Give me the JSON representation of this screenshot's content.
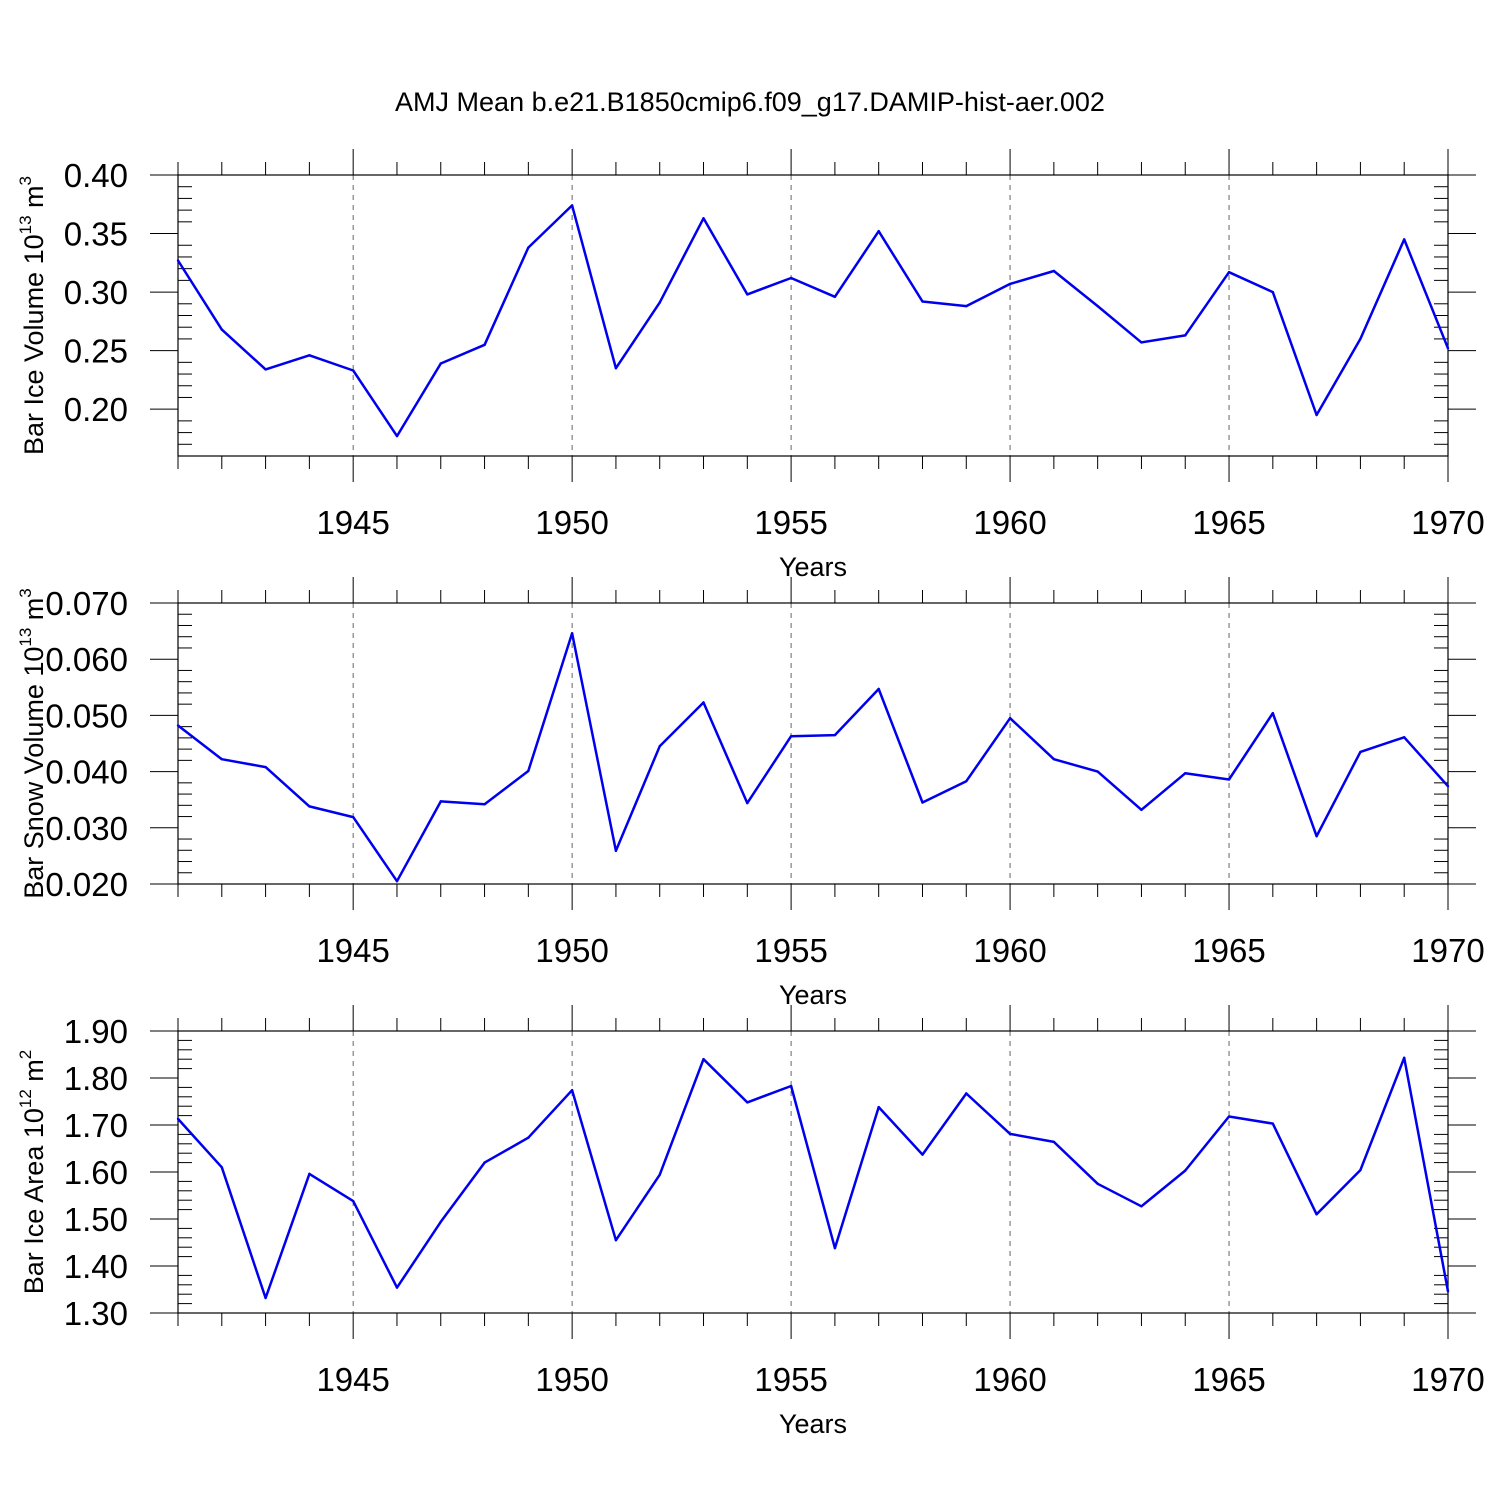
{
  "title": "AMJ Mean b.e21.B1850cmip6.f09_g17.DAMIP-hist-aer.002",
  "colors": {
    "line": "#0000ee",
    "axis": "#000000"
  },
  "chart_data": [
    {
      "type": "line",
      "xlabel": "Years",
      "ylabel": {
        "prefix": "Bar Ice Volume 10",
        "exp": "13",
        "unit": " m",
        "unit_exp": "3"
      },
      "xlim": [
        1941,
        1970
      ],
      "ylim": [
        0.16,
        0.4
      ],
      "xticks": [
        "1945",
        "1950",
        "1955",
        "1960",
        "1965",
        "1970"
      ],
      "yticks": [
        "0.20",
        "0.25",
        "0.30",
        "0.35",
        "0.40"
      ],
      "grid": "vertical dashed at major x ticks",
      "x": [
        1941,
        1942,
        1943,
        1944,
        1945,
        1946,
        1947,
        1948,
        1949,
        1950,
        1951,
        1952,
        1953,
        1954,
        1955,
        1956,
        1957,
        1958,
        1959,
        1960,
        1961,
        1962,
        1963,
        1964,
        1965,
        1966,
        1967,
        1968,
        1969,
        1970
      ],
      "values": [
        0.327,
        0.268,
        0.234,
        0.246,
        0.233,
        0.177,
        0.239,
        0.255,
        0.338,
        0.374,
        0.235,
        0.291,
        0.363,
        0.298,
        0.312,
        0.296,
        0.352,
        0.292,
        0.288,
        0.307,
        0.318,
        0.288,
        0.257,
        0.263,
        0.317,
        0.3,
        0.195,
        0.26,
        0.345,
        0.252
      ]
    },
    {
      "type": "line",
      "xlabel": "Years",
      "ylabel": {
        "prefix": "Bar Snow Volume 10",
        "exp": "13",
        "unit": " m",
        "unit_exp": "3"
      },
      "xlim": [
        1941,
        1970
      ],
      "ylim": [
        0.02,
        0.07
      ],
      "xticks": [
        "1945",
        "1950",
        "1955",
        "1960",
        "1965",
        "1970"
      ],
      "yticks": [
        "0.020",
        "0.030",
        "0.040",
        "0.050",
        "0.060",
        "0.070"
      ],
      "grid": "vertical dashed at major x ticks",
      "x": [
        1941,
        1942,
        1943,
        1944,
        1945,
        1946,
        1947,
        1948,
        1949,
        1950,
        1951,
        1952,
        1953,
        1954,
        1955,
        1956,
        1957,
        1958,
        1959,
        1960,
        1961,
        1962,
        1963,
        1964,
        1965,
        1966,
        1967,
        1968,
        1969,
        1970
      ],
      "values": [
        0.0482,
        0.0422,
        0.0408,
        0.0338,
        0.0319,
        0.0205,
        0.0347,
        0.0342,
        0.0401,
        0.0646,
        0.0259,
        0.0445,
        0.0523,
        0.0344,
        0.0463,
        0.0465,
        0.0547,
        0.0345,
        0.0383,
        0.0495,
        0.0422,
        0.04,
        0.0332,
        0.0397,
        0.0386,
        0.0504,
        0.0285,
        0.0435,
        0.0461,
        0.0374
      ]
    },
    {
      "type": "line",
      "xlabel": "Years",
      "ylabel": {
        "prefix": "Bar Ice Area 10",
        "exp": "12",
        "unit": " m",
        "unit_exp": "2"
      },
      "xlim": [
        1941,
        1970
      ],
      "ylim": [
        1.3,
        1.9
      ],
      "xticks": [
        "1945",
        "1950",
        "1955",
        "1960",
        "1965",
        "1970"
      ],
      "yticks": [
        "1.30",
        "1.40",
        "1.50",
        "1.60",
        "1.70",
        "1.80",
        "1.90"
      ],
      "grid": "vertical dashed at major x ticks",
      "x": [
        1941,
        1942,
        1943,
        1944,
        1945,
        1946,
        1947,
        1948,
        1949,
        1950,
        1951,
        1952,
        1953,
        1954,
        1955,
        1956,
        1957,
        1958,
        1959,
        1960,
        1961,
        1962,
        1963,
        1964,
        1965,
        1966,
        1967,
        1968,
        1969,
        1970
      ],
      "values": [
        1.713,
        1.61,
        1.332,
        1.596,
        1.538,
        1.354,
        1.494,
        1.62,
        1.673,
        1.774,
        1.455,
        1.594,
        1.84,
        1.748,
        1.783,
        1.438,
        1.738,
        1.637,
        1.767,
        1.681,
        1.664,
        1.575,
        1.527,
        1.603,
        1.718,
        1.703,
        1.51,
        1.604,
        1.843,
        1.346
      ]
    }
  ]
}
